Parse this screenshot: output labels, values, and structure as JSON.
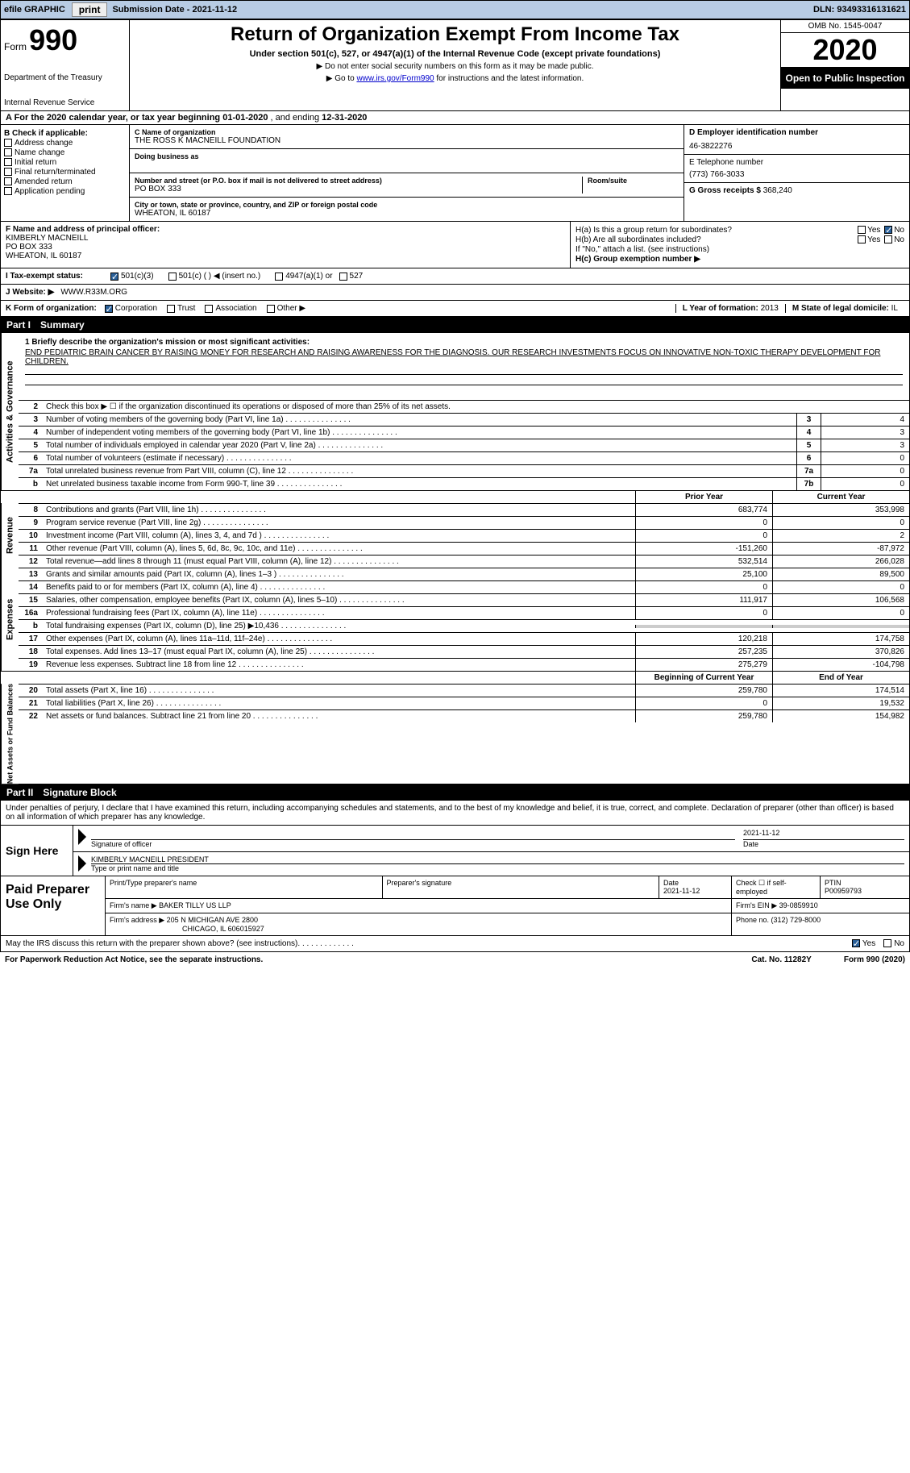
{
  "top": {
    "efile_label": "efile GRAPHIC",
    "print_btn": "print",
    "sub_date_label": "Submission Date - ",
    "sub_date": "2021-11-12",
    "dln_label": "DLN: ",
    "dln": "93493316131621"
  },
  "header": {
    "form_word": "Form",
    "form_num": "990",
    "dept1": "Department of the Treasury",
    "dept2": "Internal Revenue Service",
    "title": "Return of Organization Exempt From Income Tax",
    "sub1": "Under section 501(c), 527, or 4947(a)(1) of the Internal Revenue Code (except private foundations)",
    "sub2": "▶ Do not enter social security numbers on this form as it may be made public.",
    "sub3a": "▶ Go to ",
    "sub3_link": "www.irs.gov/Form990",
    "sub3b": " for instructions and the latest information.",
    "omb": "OMB No. 1545-0047",
    "year": "2020",
    "open": "Open to Public Inspection"
  },
  "row_a": {
    "text_a": "A For the 2020 calendar year, or tax year beginning ",
    "begin": "01-01-2020",
    "mid": " , and ending ",
    "end": "12-31-2020"
  },
  "col_b": {
    "hdr": "B Check if applicable:",
    "i1": "Address change",
    "i2": "Name change",
    "i3": "Initial return",
    "i4": "Final return/terminated",
    "i5": "Amended return",
    "i6": "Application pending"
  },
  "col_c": {
    "name_lab": "C Name of organization",
    "name": "THE ROSS K MACNEILL FOUNDATION",
    "dba_lab": "Doing business as",
    "addr_lab": "Number and street (or P.O. box if mail is not delivered to street address)",
    "suite_lab": "Room/suite",
    "addr": "PO BOX 333",
    "city_lab": "City or town, state or province, country, and ZIP or foreign postal code",
    "city": "WHEATON, IL  60187"
  },
  "col_d": {
    "d_lab": "D Employer identification number",
    "ein": "46-3822276",
    "e_lab": "E Telephone number",
    "phone": "(773) 766-3033",
    "g_lab": "G Gross receipts $ ",
    "g_val": "368,240"
  },
  "fh": {
    "f_lab": "F Name and address of principal officer:",
    "f_name": "KIMBERLY MACNEILL",
    "f_addr1": "PO BOX 333",
    "f_addr2": "WHEATON, IL  60187",
    "ha": "H(a)  Is this a group return for subordinates?",
    "hb": "H(b)  Are all subordinates included?",
    "hnote": "If \"No,\" attach a list. (see instructions)",
    "hc": "H(c)  Group exemption number ▶",
    "yes": "Yes",
    "no": "No"
  },
  "line_i": {
    "lab": "I  Tax-exempt status:",
    "o1": "501(c)(3)",
    "o2": "501(c) (  ) ◀ (insert no.)",
    "o3": "4947(a)(1) or",
    "o4": "527"
  },
  "line_j": {
    "lab": "J  Website: ▶",
    "val": "WWW.R33M.ORG"
  },
  "line_k": {
    "lab": "K Form of organization:",
    "o1": "Corporation",
    "o2": "Trust",
    "o3": "Association",
    "o4": "Other ▶",
    "l_lab": "L Year of formation: ",
    "l_val": "2013",
    "m_lab": "M State of legal domicile: ",
    "m_val": "IL"
  },
  "part1": {
    "tag": "Part I",
    "title": "Summary"
  },
  "p1": {
    "q1": "1  Briefly describe the organization's mission or most significant activities:",
    "mission": "END PEDIATRIC BRAIN CANCER BY RAISING MONEY FOR RESEARCH AND RAISING AWARENESS FOR THE DIAGNOSIS. OUR RESEARCH INVESTMENTS FOCUS ON INNOVATIVE NON-TOXIC THERAPY DEVELOPMENT FOR CHILDREN.",
    "q2": "Check this box ▶ ☐  if the organization discontinued its operations or disposed of more than 25% of its net assets.",
    "side_gov": "Activities & Governance",
    "rows_gov": [
      {
        "n": "3",
        "d": "Number of voting members of the governing body (Part VI, line 1a)",
        "box": "3",
        "v": "4"
      },
      {
        "n": "4",
        "d": "Number of independent voting members of the governing body (Part VI, line 1b)",
        "box": "4",
        "v": "3"
      },
      {
        "n": "5",
        "d": "Total number of individuals employed in calendar year 2020 (Part V, line 2a)",
        "box": "5",
        "v": "3"
      },
      {
        "n": "6",
        "d": "Total number of volunteers (estimate if necessary)",
        "box": "6",
        "v": "0"
      },
      {
        "n": "7a",
        "d": "Total unrelated business revenue from Part VIII, column (C), line 12",
        "box": "7a",
        "v": "0"
      },
      {
        "n": "b",
        "d": "Net unrelated business taxable income from Form 990-T, line 39",
        "box": "7b",
        "v": "0"
      }
    ],
    "hdr_prior": "Prior Year",
    "hdr_curr": "Current Year",
    "side_rev": "Revenue",
    "rows_rev": [
      {
        "n": "8",
        "d": "Contributions and grants (Part VIII, line 1h)",
        "p": "683,774",
        "c": "353,998"
      },
      {
        "n": "9",
        "d": "Program service revenue (Part VIII, line 2g)",
        "p": "0",
        "c": "0"
      },
      {
        "n": "10",
        "d": "Investment income (Part VIII, column (A), lines 3, 4, and 7d )",
        "p": "0",
        "c": "2"
      },
      {
        "n": "11",
        "d": "Other revenue (Part VIII, column (A), lines 5, 6d, 8c, 9c, 10c, and 11e)",
        "p": "-151,260",
        "c": "-87,972"
      },
      {
        "n": "12",
        "d": "Total revenue—add lines 8 through 11 (must equal Part VIII, column (A), line 12)",
        "p": "532,514",
        "c": "266,028"
      }
    ],
    "side_exp": "Expenses",
    "rows_exp": [
      {
        "n": "13",
        "d": "Grants and similar amounts paid (Part IX, column (A), lines 1–3 )",
        "p": "25,100",
        "c": "89,500"
      },
      {
        "n": "14",
        "d": "Benefits paid to or for members (Part IX, column (A), line 4)",
        "p": "0",
        "c": "0"
      },
      {
        "n": "15",
        "d": "Salaries, other compensation, employee benefits (Part IX, column (A), lines 5–10)",
        "p": "111,917",
        "c": "106,568"
      },
      {
        "n": "16a",
        "d": "Professional fundraising fees (Part IX, column (A), line 11e)",
        "p": "0",
        "c": "0"
      },
      {
        "n": "b",
        "d": "Total fundraising expenses (Part IX, column (D), line 25) ▶10,436",
        "p": "",
        "c": "",
        "shade": true
      },
      {
        "n": "17",
        "d": "Other expenses (Part IX, column (A), lines 11a–11d, 11f–24e)",
        "p": "120,218",
        "c": "174,758"
      },
      {
        "n": "18",
        "d": "Total expenses. Add lines 13–17 (must equal Part IX, column (A), line 25)",
        "p": "257,235",
        "c": "370,826"
      },
      {
        "n": "19",
        "d": "Revenue less expenses. Subtract line 18 from line 12",
        "p": "275,279",
        "c": "-104,798"
      }
    ],
    "hdr_beg": "Beginning of Current Year",
    "hdr_end": "End of Year",
    "side_net": "Net Assets or Fund Balances",
    "rows_net": [
      {
        "n": "20",
        "d": "Total assets (Part X, line 16)",
        "p": "259,780",
        "c": "174,514"
      },
      {
        "n": "21",
        "d": "Total liabilities (Part X, line 26)",
        "p": "0",
        "c": "19,532"
      },
      {
        "n": "22",
        "d": "Net assets or fund balances. Subtract line 21 from line 20",
        "p": "259,780",
        "c": "154,982"
      }
    ]
  },
  "part2": {
    "tag": "Part II",
    "title": "Signature Block"
  },
  "sig": {
    "intro": "Under penalties of perjury, I declare that I have examined this return, including accompanying schedules and statements, and to the best of my knowledge and belief, it is true, correct, and complete. Declaration of preparer (other than officer) is based on all information of which preparer has any knowledge.",
    "sign_here": "Sign Here",
    "sig_of": "Signature of officer",
    "date_lab": "Date",
    "date_val": "2021-11-12",
    "name_title": "KIMBERLY MACNEILL  PRESIDENT",
    "name_lab": "Type or print name and title",
    "paid": "Paid Preparer Use Only",
    "pt_name": "Print/Type preparer's name",
    "pt_sig": "Preparer's signature",
    "pt_date_lab": "Date",
    "pt_date": "2021-11-12",
    "check_se": "Check ☐ if self-employed",
    "ptin_lab": "PTIN",
    "ptin": "P00959793",
    "firm_name_lab": "Firm's name    ▶",
    "firm_name": "BAKER TILLY US LLP",
    "firm_ein_lab": "Firm's EIN ▶",
    "firm_ein": "39-0859910",
    "firm_addr_lab": "Firm's address ▶",
    "firm_addr1": "205 N MICHIGAN AVE 2800",
    "firm_addr2": "CHICAGO, IL  606015927",
    "phone_lab": "Phone no. ",
    "phone": "(312) 729-8000",
    "discuss": "May the IRS discuss this return with the preparer shown above? (see instructions)",
    "yes": "Yes",
    "no": "No"
  },
  "footer": {
    "pra": "For Paperwork Reduction Act Notice, see the separate instructions.",
    "cat": "Cat. No. 11282Y",
    "form": "Form 990 (2020)"
  }
}
